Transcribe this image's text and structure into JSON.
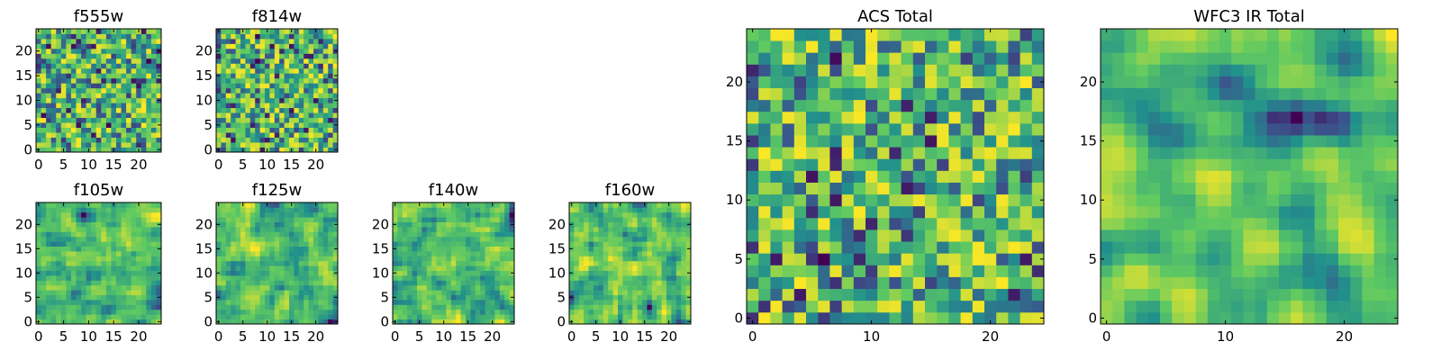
{
  "colormap": [
    "#440154",
    "#3b528b",
    "#21918c",
    "#5ec962",
    "#fde725"
  ],
  "chart_data": [
    {
      "type": "heatmap",
      "title": "f555w",
      "size": 25,
      "seed": 11,
      "smooth": 0,
      "xticks": [
        "0",
        "5",
        "10",
        "15",
        "20"
      ],
      "yticks": [
        "0",
        "5",
        "10",
        "15",
        "20"
      ]
    },
    {
      "type": "heatmap",
      "title": "f814w",
      "size": 25,
      "seed": 23,
      "smooth": 0,
      "xticks": [
        "0",
        "5",
        "10",
        "15",
        "20"
      ],
      "yticks": [
        "0",
        "5",
        "10",
        "15",
        "20"
      ]
    },
    {
      "type": "heatmap",
      "title": "f105w",
      "size": 25,
      "seed": 37,
      "smooth": 1,
      "xticks": [
        "0",
        "5",
        "10",
        "15",
        "20"
      ],
      "yticks": [
        "0",
        "5",
        "10",
        "15",
        "20"
      ]
    },
    {
      "type": "heatmap",
      "title": "f125w",
      "size": 25,
      "seed": 41,
      "smooth": 1,
      "xticks": [
        "0",
        "5",
        "10",
        "15",
        "20"
      ],
      "yticks": [
        "0",
        "5",
        "10",
        "15",
        "20"
      ]
    },
    {
      "type": "heatmap",
      "title": "f140w",
      "size": 25,
      "seed": 53,
      "smooth": 1,
      "xticks": [
        "0",
        "5",
        "10",
        "15",
        "20"
      ],
      "yticks": [
        "0",
        "5",
        "10",
        "15",
        "20"
      ]
    },
    {
      "type": "heatmap",
      "title": "f160w",
      "size": 25,
      "seed": 67,
      "smooth": 1,
      "xticks": [
        "0",
        "5",
        "10",
        "15",
        "20"
      ],
      "yticks": [
        "0",
        "5",
        "10",
        "15",
        "20"
      ]
    },
    {
      "type": "heatmap",
      "title": "ACS Total",
      "size": 25,
      "seed": 79,
      "smooth": 0,
      "xticks": [
        "0",
        "10",
        "20"
      ],
      "yticks": [
        "0",
        "5",
        "10",
        "15",
        "20"
      ]
    },
    {
      "type": "heatmap",
      "title": "WFC3 IR Total",
      "size": 25,
      "seed": 97,
      "smooth": 2,
      "xticks": [
        "0",
        "10",
        "20"
      ],
      "yticks": [
        "0",
        "5",
        "10",
        "15",
        "20"
      ]
    }
  ]
}
